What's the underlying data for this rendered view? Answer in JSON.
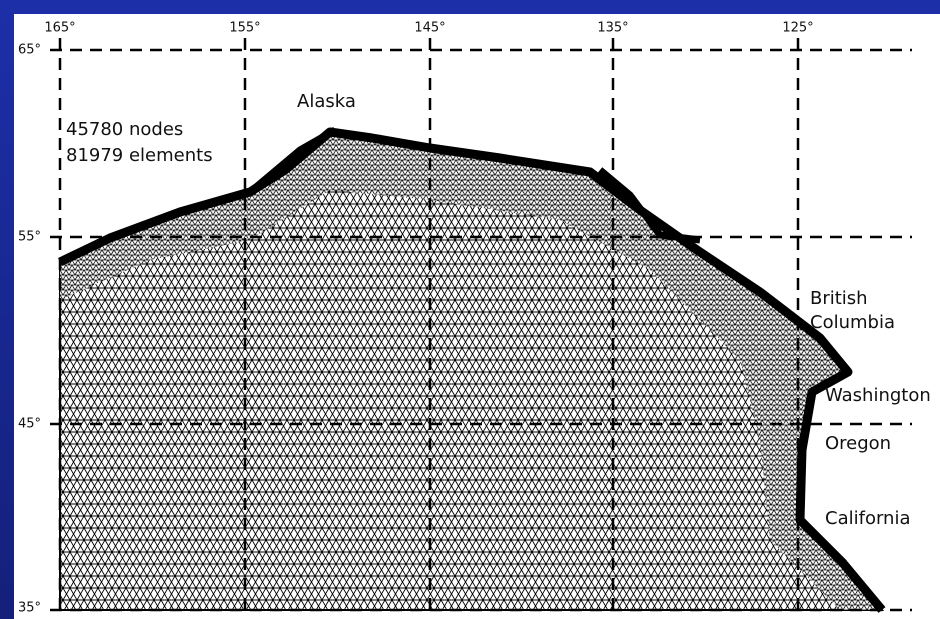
{
  "map": {
    "longitude_labels": [
      "165°",
      "155°",
      "145°",
      "135°",
      "125°"
    ],
    "latitude_labels": [
      "65°",
      "55°",
      "45°",
      "35°"
    ],
    "mesh_info": [
      "45780 nodes",
      "81979 elements"
    ],
    "regions": {
      "alaska": "Alaska",
      "british_columbia": [
        "British",
        "Columbia"
      ],
      "washington": "Washington",
      "oregon": "Oregon",
      "california": "California"
    }
  }
}
